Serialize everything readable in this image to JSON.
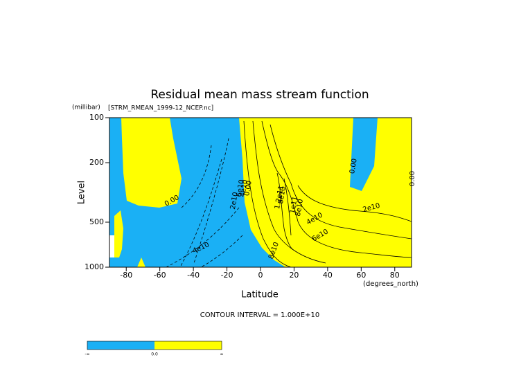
{
  "chart_data": {
    "type": "contour",
    "title": "Residual mean mass stream function",
    "subtitle": "[STRM_RMEAN_1999-12_NCEP.nc]",
    "x_label": "Latitude",
    "x_units": "(degrees_north)",
    "y_label": "Level",
    "y_units": "(millibar)",
    "xlim": [
      -90,
      90
    ],
    "xticks": [
      -80,
      -60,
      -40,
      -20,
      0,
      20,
      40,
      60,
      80
    ],
    "ylim": [
      1000,
      100
    ],
    "yticks": [
      100,
      200,
      500,
      1000
    ],
    "y_scale": "log",
    "negative_color": "#1ab0f5",
    "positive_color": "#ffff00",
    "contour_labels": [
      "0.00",
      "2e10",
      "4e10",
      "6e10",
      "4e10",
      "0.00",
      "1.2e11",
      "8e10",
      "1e11",
      "8e10",
      "6e10",
      "4e10",
      "2e10",
      "0.00",
      "0.00",
      "8e10"
    ],
    "note": "CONTOUR INTERVAL = 1.000E+10",
    "colorbar_labels": [
      "-∞",
      "0.0",
      "∞"
    ]
  }
}
